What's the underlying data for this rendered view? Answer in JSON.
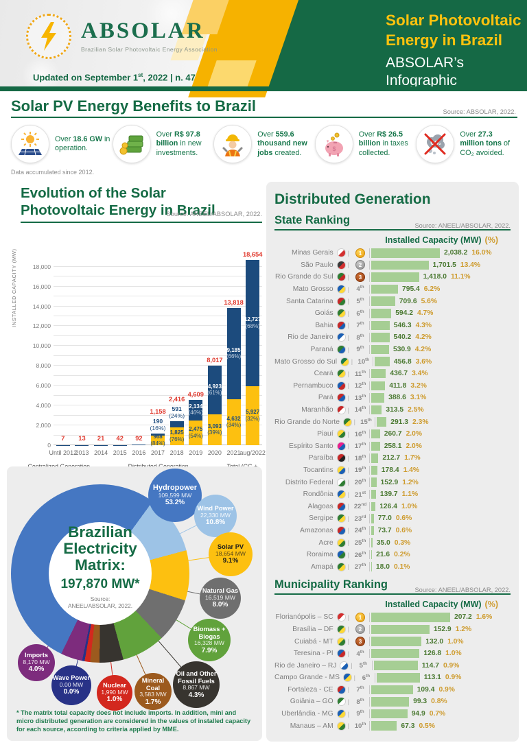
{
  "header": {
    "logo_name": "ABSOLAR",
    "logo_subtitle": "Brazilian Solar Photovoltaic Energy Association",
    "updated_pre": "Updated on September 1",
    "updated_sup": "st",
    "updated_post": ", 2022 | n. 47",
    "title_line1": "Solar Photovoltaic",
    "title_line2": "Energy in Brazil",
    "infographic_label": "ABSOLAR’s Infographic"
  },
  "benefits": {
    "title": "Solar PV Energy Benefits to Brazil",
    "source": "Source: ABSOLAR, 2022.",
    "note": "Data accumulated since 2012.",
    "items": [
      {
        "icon": "solar-panel-icon",
        "segments": [
          {
            "text": "Over ",
            "bold": false
          },
          {
            "text": "18.6 GW",
            "bold": true
          },
          {
            "text": " in operation.",
            "bold": false
          }
        ]
      },
      {
        "icon": "money-stacks-icon",
        "segments": [
          {
            "text": "Over ",
            "bold": false
          },
          {
            "text": "R$ 97.8 billion",
            "bold": true
          },
          {
            "text": " in new investments.",
            "bold": false
          }
        ]
      },
      {
        "icon": "worker-icon",
        "segments": [
          {
            "text": "Over ",
            "bold": false
          },
          {
            "text": "559.6 thousand new jobs",
            "bold": true
          },
          {
            "text": " created.",
            "bold": false
          }
        ]
      },
      {
        "icon": "piggy-bank-icon",
        "segments": [
          {
            "text": "Over ",
            "bold": false
          },
          {
            "text": "R$ 26.5 billion",
            "bold": true
          },
          {
            "text": " in taxes collected.",
            "bold": false
          }
        ]
      },
      {
        "icon": "co2-avoided-icon",
        "segments": [
          {
            "text": "Over ",
            "bold": false
          },
          {
            "text": "27.3 million tons",
            "bold": true
          },
          {
            "text": " of CO₂ avoided.",
            "bold": false
          }
        ]
      }
    ]
  },
  "chart_data": [
    {
      "type": "bar",
      "title": "Evolution of the Solar Photovoltaic Energy in Brazil",
      "source": "Source: ANEEL/ABSOLAR, 2022.",
      "ylabel": "INSTALLED CAPACITY (MW)",
      "ylim": [
        0,
        19200
      ],
      "ytick_step": 2000,
      "legend": [
        {
          "label": "Centralized Generation (Fraction in %)",
          "color": "#fdc010"
        },
        {
          "label": "Distributed Generation (Fraction in %)",
          "color": "#1c4b7d"
        },
        {
          "label": "Total (CG + DG)",
          "color": "#e0392d"
        }
      ],
      "bars": [
        {
          "year": "Until 2012",
          "total": 7,
          "total_label": "7"
        },
        {
          "year": "2013",
          "total": 13,
          "total_label": "13"
        },
        {
          "year": "2014",
          "total": 21,
          "total_label": "21"
        },
        {
          "year": "2015",
          "total": 42,
          "total_label": "42"
        },
        {
          "year": "2016",
          "total": 92,
          "total_label": "92"
        },
        {
          "year": "2017",
          "total": 1158,
          "total_label": "1,158",
          "cg": 968,
          "cg_label": "968",
          "cg_pct": "(84%)",
          "dg": 190,
          "dg_label": "190",
          "dg_pct": "(16%)",
          "dg_label_position": "above"
        },
        {
          "year": "2018",
          "total": 2416,
          "total_label": "2,416",
          "cg": 1825,
          "cg_label": "1,825",
          "cg_pct": "(76%)",
          "dg": 591,
          "dg_label": "591",
          "dg_pct": "(24%)",
          "dg_label_position": "above"
        },
        {
          "year": "2019",
          "total": 4609,
          "total_label": "4,609",
          "cg": 2475,
          "cg_label": "2,475",
          "cg_pct": "(54%)",
          "dg": 2134,
          "dg_label": "2,134",
          "dg_pct": "(46%)",
          "dg_label_position": "inside"
        },
        {
          "year": "2020",
          "total": 8017,
          "total_label": "8,017",
          "cg": 3093,
          "cg_label": "3,093",
          "cg_pct": "(39%)",
          "dg": 4923,
          "dg_label": "4,923",
          "dg_pct": "(61%)",
          "dg_label_position": "inside"
        },
        {
          "year": "2021",
          "total": 13818,
          "total_label": "13,818",
          "cg": 4632,
          "cg_label": "4,632",
          "cg_pct": "(34%)",
          "dg": 9185,
          "dg_label": "9,185",
          "dg_pct": "(66%)",
          "dg_label_position": "inside"
        },
        {
          "year": "aug/2022",
          "total": 18654,
          "total_label": "18,654",
          "cg": 5927,
          "cg_label": "5,927",
          "cg_pct": "(32%)",
          "dg": 12727,
          "dg_label": "12,727",
          "dg_pct": "(68%)",
          "dg_label_position": "inside"
        }
      ]
    },
    {
      "type": "pie",
      "center_title": "Brazilian Electricity Matrix:",
      "center_value": "197,870 MW*",
      "center_source_line1": "Source:",
      "center_source_line2": "ANEEL/ABSOLAR, 2022.",
      "footnote": "* The matrix total capacity does not include imports. In addition, mini and micro distributed generation are considered in the values of installed capacity for each source, according to criteria applied by MME.",
      "sources": [
        {
          "name": "Hydropower",
          "mw": "109,599 MW",
          "pct": "53.2%",
          "value": 53.2,
          "color": "#4577c2"
        },
        {
          "name": "Wind Power",
          "mw": "22,330 MW",
          "pct": "10.8%",
          "value": 10.8,
          "color": "#9dc3e6"
        },
        {
          "name": "Solar PV",
          "mw": "18,654 MW",
          "pct": "9.1%",
          "value": 9.1,
          "color": "#fdc010"
        },
        {
          "name": "Natural Gas",
          "mw": "16,519 MW",
          "pct": "8.0%",
          "value": 8.0,
          "color": "#6f6f6f"
        },
        {
          "name": "Biomass + Biogas",
          "mw": "16,328 MW",
          "pct": "7.9%",
          "value": 7.9,
          "color": "#61a23c"
        },
        {
          "name": "Oil and Other Fossil Fuels",
          "mw": "8,867 MW",
          "pct": "4.3%",
          "value": 4.3,
          "color": "#37342f"
        },
        {
          "name": "Mineral Coal",
          "mw": "3,583 MW",
          "pct": "1.7%",
          "value": 1.7,
          "color": "#9c5a1e"
        },
        {
          "name": "Nuclear",
          "mw": "1,990 MW",
          "pct": "1.0%",
          "value": 1.0,
          "color": "#d3281e"
        },
        {
          "name": "Wave Power",
          "mw": "0.00 MW",
          "pct": "0.0%",
          "value": 0.0,
          "color": "#283287"
        },
        {
          "name": "Imports",
          "mw": "8,170 MW",
          "pct": "4.0%",
          "value": 4.0,
          "color": "#7d2c7d"
        }
      ]
    },
    {
      "type": "bar",
      "section_title": "Distributed Generation",
      "title": "State Ranking",
      "source": "Source: ANEEL/ABSOLAR, 2022.",
      "header_mw": "Installed Capacity (MW)",
      "header_pct": "(%)",
      "max_value": 2038.2,
      "rows": [
        {
          "name": "Minas Gerais",
          "rank": 1,
          "value": 2038.2,
          "mw": "2,038.2",
          "pct": "16.0%",
          "flag": [
            "#ffffff",
            "#d32f2f"
          ]
        },
        {
          "name": "São Paulo",
          "rank": 2,
          "value": 1701.5,
          "mw": "1,701.5",
          "pct": "13.4%",
          "flag": [
            "#3a3a3a",
            "#d32f2f"
          ]
        },
        {
          "name": "Rio Grande do Sul",
          "rank": 3,
          "value": 1418.0,
          "mw": "1,418.0",
          "pct": "11.1%",
          "flag": [
            "#2e7d32",
            "#c62828"
          ]
        },
        {
          "name": "Mato Grosso",
          "rank": 4,
          "value": 795.4,
          "mw": "795.4",
          "pct": "6.2%",
          "flag": [
            "#1a5fb4",
            "#fdd835"
          ]
        },
        {
          "name": "Santa Catarina",
          "rank": 5,
          "value": 709.6,
          "mw": "709.6",
          "pct": "5.6%",
          "flag": [
            "#c62828",
            "#2e7d32"
          ]
        },
        {
          "name": "Goiás",
          "rank": 6,
          "value": 594.2,
          "mw": "594.2",
          "pct": "4.7%",
          "flag": [
            "#2e7d32",
            "#fdd835"
          ]
        },
        {
          "name": "Bahia",
          "rank": 7,
          "value": 546.3,
          "mw": "546.3",
          "pct": "4.3%",
          "flag": [
            "#c62828",
            "#1a5fb4"
          ]
        },
        {
          "name": "Rio de Janeiro",
          "rank": 8,
          "value": 540.2,
          "mw": "540.2",
          "pct": "4.2%",
          "flag": [
            "#1a5fb4",
            "#ffffff"
          ]
        },
        {
          "name": "Paraná",
          "rank": 9,
          "value": 530.9,
          "mw": "530.9",
          "pct": "4.2%",
          "flag": [
            "#2e7d32",
            "#1a5fb4"
          ]
        },
        {
          "name": "Mato Grosso do Sul",
          "rank": 10,
          "value": 456.8,
          "mw": "456.8",
          "pct": "3.6%",
          "flag": [
            "#1a7a4a",
            "#fdd835"
          ]
        },
        {
          "name": "Ceará",
          "rank": 11,
          "value": 436.7,
          "mw": "436.7",
          "pct": "3.4%",
          "flag": [
            "#2e7d32",
            "#fdd835"
          ]
        },
        {
          "name": "Pernambuco",
          "rank": 12,
          "value": 411.8,
          "mw": "411.8",
          "pct": "3.2%",
          "flag": [
            "#1a5fb4",
            "#c62828"
          ]
        },
        {
          "name": "Pará",
          "rank": 13,
          "value": 388.6,
          "mw": "388.6",
          "pct": "3.1%",
          "flag": [
            "#c62828",
            "#1a5fb4"
          ]
        },
        {
          "name": "Maranhão",
          "rank": 14,
          "value": 313.5,
          "mw": "313.5",
          "pct": "2.5%",
          "flag": [
            "#c62828",
            "#ffffff"
          ]
        },
        {
          "name": "Rio Grande do Norte",
          "rank": 15,
          "value": 291.3,
          "mw": "291.3",
          "pct": "2.3%",
          "flag": [
            "#2e7d32",
            "#fdd835"
          ]
        },
        {
          "name": "Piauí",
          "rank": 16,
          "value": 260.7,
          "mw": "260.7",
          "pct": "2.0%",
          "flag": [
            "#fdd835",
            "#2e7d32"
          ]
        },
        {
          "name": "Espírito Santo",
          "rank": 17,
          "value": 258.1,
          "mw": "258.1",
          "pct": "2.0%",
          "flag": [
            "#e91e8c",
            "#1a5fb4"
          ]
        },
        {
          "name": "Paraíba",
          "rank": 18,
          "value": 212.7,
          "mw": "212.7",
          "pct": "1.7%",
          "flag": [
            "#c62828",
            "#222222"
          ]
        },
        {
          "name": "Tocantins",
          "rank": 19,
          "value": 178.4,
          "mw": "178.4",
          "pct": "1.4%",
          "flag": [
            "#fdd835",
            "#1a5fb4"
          ]
        },
        {
          "name": "Distrito Federal",
          "rank": 20,
          "value": 152.9,
          "mw": "152.9",
          "pct": "1.2%",
          "flag": [
            "#ffffff",
            "#2e7d32"
          ]
        },
        {
          "name": "Rondônia",
          "rank": 21,
          "value": 139.7,
          "mw": "139.7",
          "pct": "1.1%",
          "flag": [
            "#1a5fb4",
            "#fdd835"
          ]
        },
        {
          "name": "Alagoas",
          "rank": 22,
          "value": 126.4,
          "mw": "126.4",
          "pct": "1.0%",
          "flag": [
            "#c62828",
            "#1a5fb4"
          ]
        },
        {
          "name": "Sergipe",
          "rank": 23,
          "value": 77.0,
          "mw": "77.0",
          "pct": "0.6%",
          "flag": [
            "#2e7d32",
            "#fdd835"
          ]
        },
        {
          "name": "Amazonas",
          "rank": 24,
          "value": 73.7,
          "mw": "73.7",
          "pct": "0.6%",
          "flag": [
            "#c62828",
            "#1a5fb4"
          ]
        },
        {
          "name": "Acre",
          "rank": 25,
          "value": 35.0,
          "mw": "35.0",
          "pct": "0.3%",
          "flag": [
            "#fdd835",
            "#2e7d32"
          ]
        },
        {
          "name": "Roraima",
          "rank": 26,
          "value": 21.6,
          "mw": "21.6",
          "pct": "0.2%",
          "flag": [
            "#1a5fb4",
            "#2e7d32"
          ]
        },
        {
          "name": "Amapá",
          "rank": 27,
          "value": 18.0,
          "mw": "18.0",
          "pct": "0.1%",
          "flag": [
            "#2e7d32",
            "#fdd835"
          ]
        }
      ]
    },
    {
      "type": "bar",
      "title": "Municipality Ranking",
      "source": "Source: ANEEL/ABSOLAR, 2022.",
      "header_mw": "Installed Capacity (MW)",
      "header_pct": "(%)",
      "max_value": 207.2,
      "rows": [
        {
          "name": "Florianópolis – SC",
          "rank": 1,
          "value": 207.2,
          "mw": "207.2",
          "pct": "1.6%",
          "flag": [
            "#d32f2f",
            "#ffffff"
          ]
        },
        {
          "name": "Brasília – DF",
          "rank": 2,
          "value": 152.9,
          "mw": "152.9",
          "pct": "1.2%",
          "flag": [
            "#2e7d32",
            "#fdd835"
          ]
        },
        {
          "name": "Cuiabá - MT",
          "rank": 3,
          "value": 132.0,
          "mw": "132.0",
          "pct": "1.0%",
          "flag": [
            "#fdd835",
            "#2e7d32"
          ]
        },
        {
          "name": "Teresina - PI",
          "rank": 4,
          "value": 126.8,
          "mw": "126.8",
          "pct": "1.0%",
          "flag": [
            "#1a5fb4",
            "#c62828"
          ]
        },
        {
          "name": "Rio de Janeiro – RJ",
          "rank": 5,
          "value": 114.7,
          "mw": "114.7",
          "pct": "0.9%",
          "flag": [
            "#ffffff",
            "#1a5fb4"
          ]
        },
        {
          "name": "Campo Grande - MS",
          "rank": 6,
          "value": 113.1,
          "mw": "113.1",
          "pct": "0.9%",
          "flag": [
            "#1a5fb4",
            "#fdd835"
          ]
        },
        {
          "name": "Fortaleza - CE",
          "rank": 7,
          "value": 109.4,
          "mw": "109.4",
          "pct": "0.9%",
          "flag": [
            "#c62828",
            "#1a5fb4"
          ]
        },
        {
          "name": "Goiânia – GO",
          "rank": 8,
          "value": 99.3,
          "mw": "99.3",
          "pct": "0.8%",
          "flag": [
            "#2e7d32",
            "#ffffff"
          ]
        },
        {
          "name": "Uberlândia - MG",
          "rank": 9,
          "value": 94.9,
          "mw": "94.9",
          "pct": "0.7%",
          "flag": [
            "#1a5fb4",
            "#fdd835"
          ]
        },
        {
          "name": "Manaus – AM",
          "rank": 10,
          "value": 67.3,
          "mw": "67.3",
          "pct": "0.5%",
          "flag": [
            "#fdd835",
            "#2e7d32"
          ]
        }
      ]
    }
  ],
  "colors": {
    "brand_green": "#156945",
    "accent_yellow": "#ffc20e",
    "gold": "#ce9b2d",
    "total_red": "#e0392d",
    "bar_blue": "#1c4b7d",
    "bar_yellow": "#fdc010",
    "ranking_bar_green": "#a6ce94"
  }
}
